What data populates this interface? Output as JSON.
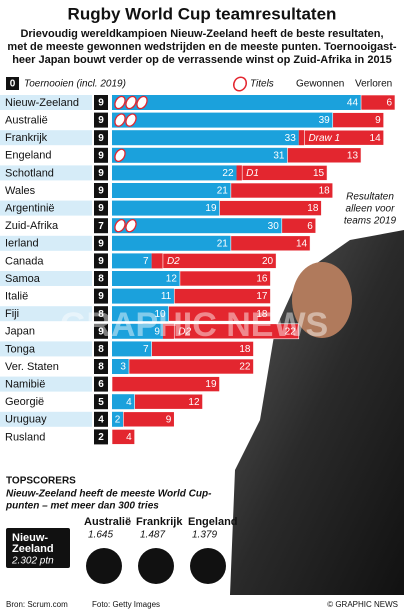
{
  "chart_data": {
    "type": "bar",
    "title": "Rugby World Cup teamresultaten",
    "subtitle": [
      "Drievoudig wereldkampioen Nieuw-Zeeland heeft de beste resultaten,",
      "met de meeste gewonnen wedstrijden en de meeste punten. Toernooigast-",
      "heer Japan bouwt verder op de verrassende winst op Zuid-Afrika in 2015"
    ],
    "legend_tournaments": "Toernooien (incl. 2019)",
    "legend_tournaments_sample": 0,
    "legend_titles": "Titels",
    "categories": [
      "Nieuw-Zeeland",
      "Australië",
      "Frankrijk",
      "Engeland",
      "Schotland",
      "Wales",
      "Argentinië",
      "Zuid-Afrika",
      "Ierland",
      "Canada",
      "Samoa",
      "Italië",
      "Fiji",
      "Japan",
      "Tonga",
      "Ver. Staten",
      "Namibië",
      "Georgië",
      "Uruguay",
      "Rusland"
    ],
    "tournaments": [
      9,
      9,
      9,
      9,
      9,
      9,
      9,
      7,
      9,
      9,
      8,
      9,
      8,
      9,
      8,
      8,
      6,
      5,
      4,
      2
    ],
    "titles": [
      3,
      2,
      0,
      1,
      0,
      0,
      0,
      2,
      0,
      0,
      0,
      0,
      0,
      0,
      0,
      0,
      0,
      0,
      0,
      0
    ],
    "series": [
      {
        "name": "Gewonnen",
        "color": "#1ba1dc",
        "values": [
          44,
          39,
          33,
          31,
          22,
          21,
          19,
          30,
          21,
          7,
          12,
          11,
          10,
          9,
          7,
          3,
          0,
          4,
          2,
          0
        ]
      },
      {
        "name": "Verloren",
        "color": "#e3262f",
        "values": [
          6,
          9,
          14,
          13,
          15,
          18,
          18,
          6,
          14,
          20,
          16,
          17,
          18,
          22,
          18,
          22,
          19,
          12,
          9,
          4
        ]
      }
    ],
    "draws": {
      "color": "#e3262f",
      "values": [
        null,
        null,
        1,
        null,
        1,
        null,
        null,
        null,
        null,
        2,
        null,
        null,
        null,
        2,
        null,
        null,
        null,
        null,
        null,
        null
      ],
      "value_labels": [
        null,
        null,
        "Draw 1",
        null,
        "D1",
        null,
        null,
        null,
        null,
        "D2",
        null,
        null,
        null,
        "D2",
        null,
        null,
        null,
        null,
        null,
        null
      ]
    },
    "xlim": [
      0,
      50
    ],
    "annotation": [
      "Resultaten",
      "alleen voor",
      "teams 2019"
    ]
  },
  "topscorers": {
    "heading": "TOPSCORERS",
    "text": [
      "Nieuw-Zeeland heeft de meeste World Cup-",
      "punten – met meer dan 300 tries"
    ],
    "leader": {
      "name": [
        "Nieuw-",
        "Zeeland"
      ],
      "points": "2.302 ptn"
    },
    "others": [
      {
        "name": "Australië",
        "points": "1.645"
      },
      {
        "name": "Frankrijk",
        "points": "1.487"
      },
      {
        "name": "Engeland",
        "points": "1.379"
      }
    ]
  },
  "footer": {
    "source": "Bron: Scrum.com",
    "photo": "Foto: Getty Images",
    "copyright": "© GRAPHIC NEWS"
  },
  "watermark": "GRAPHIC NEWS"
}
